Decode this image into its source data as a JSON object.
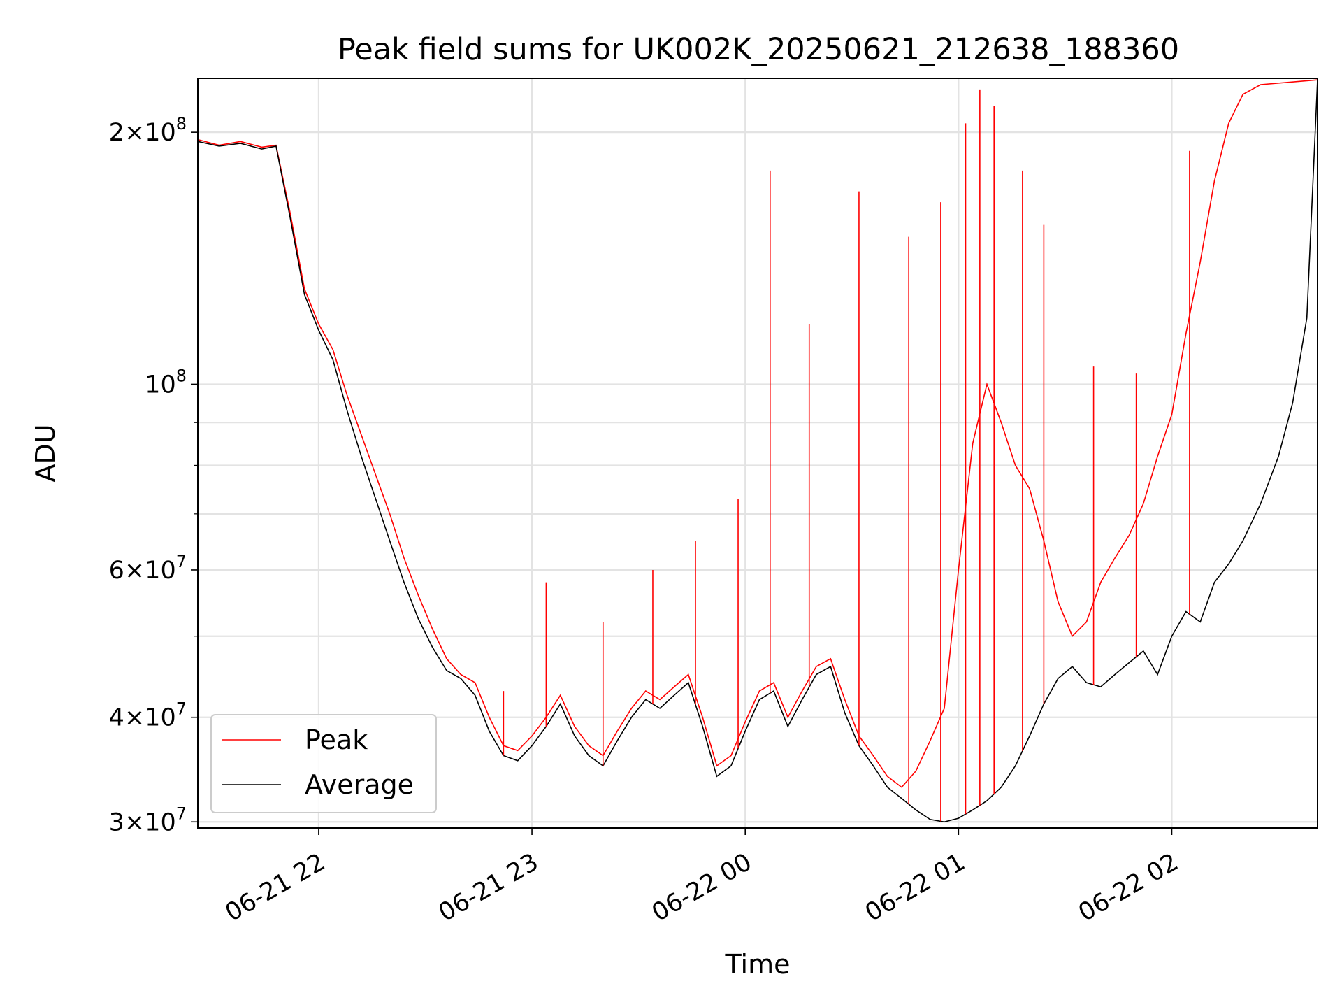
{
  "chart_data": {
    "type": "line",
    "title": "Peak field sums for UK002K_20250621_212638_188360",
    "xlabel": "Time",
    "ylabel": "ADU",
    "yscale": "log",
    "xlim": [
      "2025-06-21 21:26",
      "2025-06-22 02:41"
    ],
    "ylim": [
      29500000,
      232000000
    ],
    "grid": true,
    "legend_position": "lower left",
    "x_ticks": [
      {
        "value": "2025-06-21 22:00",
        "label": "06-21 22"
      },
      {
        "value": "2025-06-21 23:00",
        "label": "06-21 23"
      },
      {
        "value": "2025-06-22 00:00",
        "label": "06-22 00"
      },
      {
        "value": "2025-06-22 01:00",
        "label": "06-22 01"
      },
      {
        "value": "2025-06-22 02:00",
        "label": "06-22 02"
      }
    ],
    "y_ticks": [
      {
        "value": 30000000,
        "mantissa": "3",
        "exponent": "7"
      },
      {
        "value": 40000000,
        "mantissa": "4",
        "exponent": "7"
      },
      {
        "value": 60000000,
        "mantissa": "6",
        "exponent": "7"
      },
      {
        "value": 100000000,
        "mantissa": "",
        "exponent": "8"
      },
      {
        "value": 200000000,
        "mantissa": "2",
        "exponent": "8"
      }
    ],
    "y_minor_ticks": [
      50000000,
      70000000,
      80000000,
      90000000
    ],
    "times_label": "x values are 'YYYY-MM-DD HH:MM' (date axis)",
    "series": [
      {
        "name": "Peak",
        "color": "#ff0000",
        "points": [
          [
            "2025-06-21 21:26",
            196000000
          ],
          [
            "2025-06-21 21:32",
            193000000
          ],
          [
            "2025-06-21 21:38",
            195000000
          ],
          [
            "2025-06-21 21:44",
            192000000
          ],
          [
            "2025-06-21 21:48",
            193000000
          ],
          [
            "2025-06-21 21:52",
            160000000
          ],
          [
            "2025-06-21 21:56",
            130000000
          ],
          [
            "2025-06-21 22:00",
            118000000
          ],
          [
            "2025-06-21 22:04",
            110000000
          ],
          [
            "2025-06-21 22:08",
            97000000
          ],
          [
            "2025-06-21 22:12",
            87000000
          ],
          [
            "2025-06-21 22:16",
            78000000
          ],
          [
            "2025-06-21 22:20",
            70000000
          ],
          [
            "2025-06-21 22:24",
            62000000
          ],
          [
            "2025-06-21 22:28",
            56000000
          ],
          [
            "2025-06-21 22:32",
            51000000
          ],
          [
            "2025-06-21 22:36",
            47000000
          ],
          [
            "2025-06-21 22:40",
            45000000
          ],
          [
            "2025-06-21 22:44",
            44000000
          ],
          [
            "2025-06-21 22:48",
            40000000
          ],
          [
            "2025-06-21 22:52",
            37000000
          ],
          [
            "2025-06-21 22:56",
            36500000
          ],
          [
            "2025-06-21 23:00",
            38000000
          ],
          [
            "2025-06-21 23:04",
            40000000
          ],
          [
            "2025-06-21 23:08",
            42500000
          ],
          [
            "2025-06-21 23:12",
            39000000
          ],
          [
            "2025-06-21 23:16",
            37000000
          ],
          [
            "2025-06-21 23:20",
            36000000
          ],
          [
            "2025-06-21 23:24",
            38500000
          ],
          [
            "2025-06-21 23:28",
            41000000
          ],
          [
            "2025-06-21 23:32",
            43000000
          ],
          [
            "2025-06-21 23:36",
            42000000
          ],
          [
            "2025-06-21 23:40",
            43500000
          ],
          [
            "2025-06-21 23:44",
            45000000
          ],
          [
            "2025-06-21 23:48",
            40000000
          ],
          [
            "2025-06-21 23:52",
            35000000
          ],
          [
            "2025-06-21 23:56",
            36000000
          ],
          [
            "2025-06-22 00:00",
            39500000
          ],
          [
            "2025-06-22 00:04",
            43000000
          ],
          [
            "2025-06-22 00:08",
            44000000
          ],
          [
            "2025-06-22 00:12",
            40000000
          ],
          [
            "2025-06-22 00:16",
            43000000
          ],
          [
            "2025-06-22 00:20",
            46000000
          ],
          [
            "2025-06-22 00:24",
            47000000
          ],
          [
            "2025-06-22 00:28",
            42000000
          ],
          [
            "2025-06-22 00:32",
            38000000
          ],
          [
            "2025-06-22 00:36",
            36000000
          ],
          [
            "2025-06-22 00:40",
            34000000
          ],
          [
            "2025-06-22 00:44",
            33000000
          ],
          [
            "2025-06-22 00:48",
            34500000
          ],
          [
            "2025-06-22 00:52",
            37500000
          ],
          [
            "2025-06-22 00:56",
            41000000
          ],
          [
            "2025-06-22 01:00",
            60000000
          ],
          [
            "2025-06-22 01:04",
            85000000
          ],
          [
            "2025-06-22 01:08",
            100000000
          ],
          [
            "2025-06-22 01:12",
            90000000
          ],
          [
            "2025-06-22 01:16",
            80000000
          ],
          [
            "2025-06-22 01:20",
            75000000
          ],
          [
            "2025-06-22 01:24",
            65000000
          ],
          [
            "2025-06-22 01:28",
            55000000
          ],
          [
            "2025-06-22 01:32",
            50000000
          ],
          [
            "2025-06-22 01:36",
            52000000
          ],
          [
            "2025-06-22 01:40",
            58000000
          ],
          [
            "2025-06-22 01:44",
            62000000
          ],
          [
            "2025-06-22 01:48",
            66000000
          ],
          [
            "2025-06-22 01:52",
            72000000
          ],
          [
            "2025-06-22 01:56",
            82000000
          ],
          [
            "2025-06-22 02:00",
            92000000
          ],
          [
            "2025-06-22 02:04",
            115000000
          ],
          [
            "2025-06-22 02:08",
            140000000
          ],
          [
            "2025-06-22 02:12",
            175000000
          ],
          [
            "2025-06-22 02:16",
            205000000
          ],
          [
            "2025-06-22 02:20",
            222000000
          ],
          [
            "2025-06-22 02:25",
            228000000
          ],
          [
            "2025-06-22 02:41",
            231000000
          ]
        ]
      },
      {
        "name": "Average",
        "color": "#000000",
        "points": [
          [
            "2025-06-21 21:26",
            195000000
          ],
          [
            "2025-06-21 21:32",
            192500000
          ],
          [
            "2025-06-21 21:38",
            194000000
          ],
          [
            "2025-06-21 21:44",
            191000000
          ],
          [
            "2025-06-21 21:48",
            192500000
          ],
          [
            "2025-06-21 21:52",
            158000000
          ],
          [
            "2025-06-21 21:56",
            128000000
          ],
          [
            "2025-06-21 22:00",
            116000000
          ],
          [
            "2025-06-21 22:04",
            107000000
          ],
          [
            "2025-06-21 22:08",
            93000000
          ],
          [
            "2025-06-21 22:12",
            82000000
          ],
          [
            "2025-06-21 22:16",
            73000000
          ],
          [
            "2025-06-21 22:20",
            65000000
          ],
          [
            "2025-06-21 22:24",
            58000000
          ],
          [
            "2025-06-21 22:28",
            52500000
          ],
          [
            "2025-06-21 22:32",
            48500000
          ],
          [
            "2025-06-21 22:36",
            45500000
          ],
          [
            "2025-06-21 22:40",
            44500000
          ],
          [
            "2025-06-21 22:44",
            42500000
          ],
          [
            "2025-06-21 22:48",
            38500000
          ],
          [
            "2025-06-21 22:52",
            36000000
          ],
          [
            "2025-06-21 22:56",
            35500000
          ],
          [
            "2025-06-21 23:00",
            37000000
          ],
          [
            "2025-06-21 23:04",
            39000000
          ],
          [
            "2025-06-21 23:08",
            41500000
          ],
          [
            "2025-06-21 23:12",
            38000000
          ],
          [
            "2025-06-21 23:16",
            36000000
          ],
          [
            "2025-06-21 23:20",
            35000000
          ],
          [
            "2025-06-21 23:24",
            37500000
          ],
          [
            "2025-06-21 23:28",
            40000000
          ],
          [
            "2025-06-21 23:32",
            42000000
          ],
          [
            "2025-06-21 23:36",
            41000000
          ],
          [
            "2025-06-21 23:40",
            42500000
          ],
          [
            "2025-06-21 23:44",
            44000000
          ],
          [
            "2025-06-21 23:48",
            39000000
          ],
          [
            "2025-06-21 23:52",
            34000000
          ],
          [
            "2025-06-21 23:56",
            35000000
          ],
          [
            "2025-06-22 00:00",
            38500000
          ],
          [
            "2025-06-22 00:04",
            42000000
          ],
          [
            "2025-06-22 00:08",
            43000000
          ],
          [
            "2025-06-22 00:12",
            39000000
          ],
          [
            "2025-06-22 00:16",
            42000000
          ],
          [
            "2025-06-22 00:20",
            45000000
          ],
          [
            "2025-06-22 00:24",
            46000000
          ],
          [
            "2025-06-22 00:28",
            40500000
          ],
          [
            "2025-06-22 00:32",
            37000000
          ],
          [
            "2025-06-22 00:36",
            35000000
          ],
          [
            "2025-06-22 00:40",
            33000000
          ],
          [
            "2025-06-22 00:44",
            32000000
          ],
          [
            "2025-06-22 00:48",
            31000000
          ],
          [
            "2025-06-22 00:52",
            30200000
          ],
          [
            "2025-06-22 00:56",
            30000000
          ],
          [
            "2025-06-22 01:00",
            30300000
          ],
          [
            "2025-06-22 01:04",
            31000000
          ],
          [
            "2025-06-22 01:08",
            31800000
          ],
          [
            "2025-06-22 01:12",
            33000000
          ],
          [
            "2025-06-22 01:16",
            35000000
          ],
          [
            "2025-06-22 01:20",
            38000000
          ],
          [
            "2025-06-22 01:24",
            41500000
          ],
          [
            "2025-06-22 01:28",
            44500000
          ],
          [
            "2025-06-22 01:32",
            46000000
          ],
          [
            "2025-06-22 01:36",
            44000000
          ],
          [
            "2025-06-22 01:40",
            43500000
          ],
          [
            "2025-06-22 01:44",
            45000000
          ],
          [
            "2025-06-22 01:48",
            46500000
          ],
          [
            "2025-06-22 01:52",
            48000000
          ],
          [
            "2025-06-22 01:56",
            45000000
          ],
          [
            "2025-06-22 02:00",
            50000000
          ],
          [
            "2025-06-22 02:04",
            53500000
          ],
          [
            "2025-06-22 02:08",
            52000000
          ],
          [
            "2025-06-22 02:12",
            58000000
          ],
          [
            "2025-06-22 02:16",
            61000000
          ],
          [
            "2025-06-22 02:20",
            65000000
          ],
          [
            "2025-06-22 02:25",
            72000000
          ],
          [
            "2025-06-22 02:30",
            82000000
          ],
          [
            "2025-06-22 02:34",
            95000000
          ],
          [
            "2025-06-22 02:38",
            120000000
          ],
          [
            "2025-06-22 02:41",
            231000000
          ]
        ]
      }
    ],
    "peak_spikes": [
      [
        "2025-06-21 22:52",
        43000000
      ],
      [
        "2025-06-21 23:04",
        58000000
      ],
      [
        "2025-06-21 23:20",
        52000000
      ],
      [
        "2025-06-21 23:34",
        60000000
      ],
      [
        "2025-06-21 23:46",
        65000000
      ],
      [
        "2025-06-21 23:58",
        73000000
      ],
      [
        "2025-06-22 00:07",
        180000000
      ],
      [
        "2025-06-22 00:18",
        118000000
      ],
      [
        "2025-06-22 00:32",
        170000000
      ],
      [
        "2025-06-22 00:46",
        150000000
      ],
      [
        "2025-06-22 00:55",
        165000000
      ],
      [
        "2025-06-22 01:02",
        205000000
      ],
      [
        "2025-06-22 01:06",
        225000000
      ],
      [
        "2025-06-22 01:10",
        215000000
      ],
      [
        "2025-06-22 01:18",
        180000000
      ],
      [
        "2025-06-22 01:24",
        155000000
      ],
      [
        "2025-06-22 01:38",
        105000000
      ],
      [
        "2025-06-22 01:50",
        103000000
      ],
      [
        "2025-06-22 02:05",
        190000000
      ]
    ]
  },
  "legend": {
    "items": [
      {
        "label": "Peak",
        "color": "#ff0000"
      },
      {
        "label": "Average",
        "color": "#000000"
      }
    ]
  }
}
